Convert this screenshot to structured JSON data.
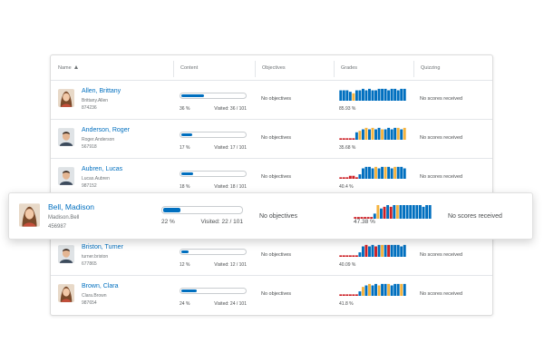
{
  "colors": {
    "link": "#006fbf",
    "bar_blue": "#006fbf",
    "bar_orange": "#f5b33e",
    "bar_red": "#cd2026",
    "border": "#e3e6e9"
  },
  "header": {
    "name": "Name",
    "content": "Content",
    "objectives": "Objectives",
    "grades": "Grades",
    "quizzing": "Quizzing"
  },
  "rows": [
    {
      "name": "Allen, Brittany",
      "username": "Brittany.Allen",
      "org_id": "874236",
      "content_percent": "36 %",
      "content_fraction": 0.36,
      "visited": "Visited: 36 / 101",
      "objectives": "No objectives",
      "grade": "85.93 %",
      "quizzing": "No scores received",
      "avatar_icon": "female-avatar-icon",
      "grades_series": [
        [
          "b",
          7
        ],
        [
          "b",
          7
        ],
        [
          "b",
          7
        ],
        [
          "b",
          6
        ],
        [
          "o",
          5
        ],
        [
          "b",
          7
        ],
        [
          "b",
          7
        ],
        [
          "b",
          8
        ],
        [
          "b",
          7
        ],
        [
          "b",
          8
        ],
        [
          "b",
          7
        ],
        [
          "b",
          7
        ],
        [
          "b",
          8
        ],
        [
          "b",
          8
        ],
        [
          "b",
          8
        ],
        [
          "b",
          7
        ],
        [
          "b",
          8
        ],
        [
          "b",
          8
        ],
        [
          "b",
          7
        ],
        [
          "b",
          8
        ],
        [
          "b",
          8
        ]
      ]
    },
    {
      "name": "Anderson, Roger",
      "username": "Roger.Anderson",
      "org_id": "567918",
      "content_percent": "17 %",
      "content_fraction": 0.17,
      "visited": "Visited: 17 / 101",
      "objectives": "No objectives",
      "grade": "35.68 %",
      "quizzing": "No scores received",
      "avatar_icon": "male-avatar-icon",
      "grades_series": [
        [
          "r",
          1
        ],
        [
          "r",
          1
        ],
        [
          "r",
          1
        ],
        [
          "r",
          1
        ],
        [
          "r",
          1
        ],
        [
          "b",
          5
        ],
        [
          "o",
          6
        ],
        [
          "b",
          7
        ],
        [
          "o",
          8
        ],
        [
          "b",
          7
        ],
        [
          "o",
          8
        ],
        [
          "b",
          7
        ],
        [
          "b",
          8
        ],
        [
          "o",
          7
        ],
        [
          "b",
          7
        ],
        [
          "b",
          8
        ],
        [
          "b",
          7
        ],
        [
          "b",
          8
        ],
        [
          "o",
          8
        ],
        [
          "b",
          7
        ],
        [
          "o",
          8
        ]
      ]
    },
    {
      "name": "Aubren, Lucas",
      "username": "Lucas.Aubren",
      "org_id": "987152",
      "content_percent": "18 %",
      "content_fraction": 0.18,
      "visited": "Visited: 18 / 101",
      "objectives": "No objectives",
      "grade": "40.4 %",
      "quizzing": "No scores received",
      "avatar_icon": "male-avatar-icon",
      "grades_series": [
        [
          "r",
          1
        ],
        [
          "r",
          1
        ],
        [
          "r",
          1
        ],
        [
          "r",
          2
        ],
        [
          "r",
          2
        ],
        [
          "r",
          1
        ],
        [
          "b",
          3
        ],
        [
          "b",
          7
        ],
        [
          "b",
          8
        ],
        [
          "b",
          8
        ],
        [
          "b",
          7
        ],
        [
          "o",
          8
        ],
        [
          "b",
          7
        ],
        [
          "b",
          8
        ],
        [
          "o",
          8
        ],
        [
          "b",
          8
        ],
        [
          "b",
          7
        ],
        [
          "o",
          8
        ],
        [
          "b",
          8
        ],
        [
          "b",
          8
        ],
        [
          "b",
          7
        ]
      ]
    },
    {
      "name": "Bell, Madison",
      "username": "Madison.Bell",
      "org_id": "456987",
      "content_percent": "22 %",
      "content_fraction": 0.22,
      "visited": "Visited: 22 / 101",
      "objectives": "No objectives",
      "grade": "47.38 %",
      "quizzing": "No scores received",
      "avatar_icon": "female-avatar-icon",
      "grades_series": [
        [
          "r",
          1
        ],
        [
          "r",
          1
        ],
        [
          "r",
          1
        ],
        [
          "r",
          1
        ],
        [
          "r",
          1
        ],
        [
          "r",
          1
        ],
        [
          "b",
          3
        ],
        [
          "o",
          8
        ],
        [
          "b",
          6
        ],
        [
          "r",
          7
        ],
        [
          "b",
          8
        ],
        [
          "r",
          7
        ],
        [
          "b",
          8
        ],
        [
          "o",
          8
        ],
        [
          "b",
          8
        ],
        [
          "b",
          8
        ],
        [
          "b",
          8
        ],
        [
          "b",
          8
        ],
        [
          "b",
          8
        ],
        [
          "b",
          8
        ],
        [
          "b",
          8
        ],
        [
          "b",
          7
        ],
        [
          "b",
          8
        ],
        [
          "b",
          8
        ]
      ]
    },
    {
      "name": "Briston, Turner",
      "username": "turner.briston",
      "org_id": "677865",
      "content_percent": "12 %",
      "content_fraction": 0.12,
      "visited": "Visited: 12 / 101",
      "objectives": "No objectives",
      "grade": "40.09 %",
      "quizzing": "No scores received",
      "avatar_icon": "male-avatar-icon",
      "grades_series": [
        [
          "r",
          1
        ],
        [
          "r",
          1
        ],
        [
          "r",
          1
        ],
        [
          "r",
          1
        ],
        [
          "r",
          1
        ],
        [
          "r",
          1
        ],
        [
          "b",
          3
        ],
        [
          "b",
          7
        ],
        [
          "r",
          8
        ],
        [
          "b",
          7
        ],
        [
          "b",
          8
        ],
        [
          "r",
          7
        ],
        [
          "b",
          8
        ],
        [
          "o",
          8
        ],
        [
          "b",
          8
        ],
        [
          "r",
          8
        ],
        [
          "b",
          8
        ],
        [
          "b",
          8
        ],
        [
          "b",
          8
        ],
        [
          "b",
          7
        ],
        [
          "b",
          8
        ]
      ]
    },
    {
      "name": "Brown, Clara",
      "username": "Clara.Brown",
      "org_id": "987654",
      "content_percent": "24 %",
      "content_fraction": 0.24,
      "visited": "Visited: 24 / 101",
      "objectives": "No objectives",
      "grade": "41.8 %",
      "quizzing": "No scores received",
      "avatar_icon": "female-avatar-icon",
      "grades_series": [
        [
          "r",
          1
        ],
        [
          "r",
          1
        ],
        [
          "r",
          1
        ],
        [
          "r",
          1
        ],
        [
          "r",
          1
        ],
        [
          "r",
          1
        ],
        [
          "b",
          3
        ],
        [
          "o",
          6
        ],
        [
          "b",
          7
        ],
        [
          "o",
          8
        ],
        [
          "b",
          7
        ],
        [
          "b",
          8
        ],
        [
          "o",
          7
        ],
        [
          "b",
          8
        ],
        [
          "b",
          8
        ],
        [
          "o",
          8
        ],
        [
          "b",
          7
        ],
        [
          "b",
          8
        ],
        [
          "b",
          8
        ],
        [
          "o",
          8
        ],
        [
          "b",
          8
        ]
      ]
    }
  ]
}
